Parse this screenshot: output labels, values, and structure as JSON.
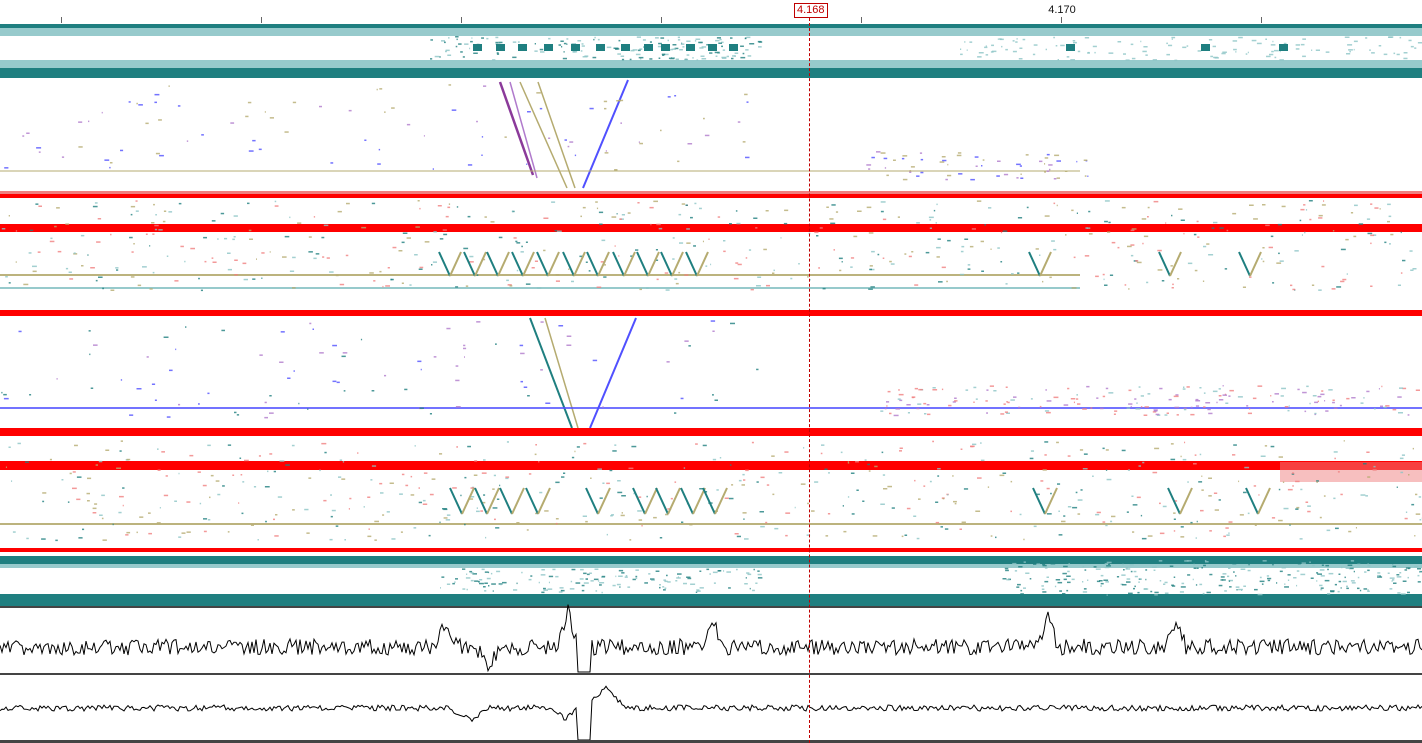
{
  "ruler": {
    "ticks": [
      {
        "label": ""
      },
      {
        "label": ""
      },
      {
        "label": ""
      },
      {
        "label": ""
      },
      {
        "label": ""
      },
      {
        "label": "4.170"
      },
      {
        "label": ""
      }
    ]
  },
  "cursor": {
    "label": "4.168"
  },
  "colors": {
    "teal": "#1f7f80",
    "teal_light": "#8cc4c6",
    "red": "#ff0000",
    "pink": "#f08080",
    "olive": "#b5ab70",
    "purple": "#8b3a9a",
    "violet": "#b07acc",
    "blue": "#5050ff",
    "trace": "#000000",
    "divider": "#444444"
  }
}
